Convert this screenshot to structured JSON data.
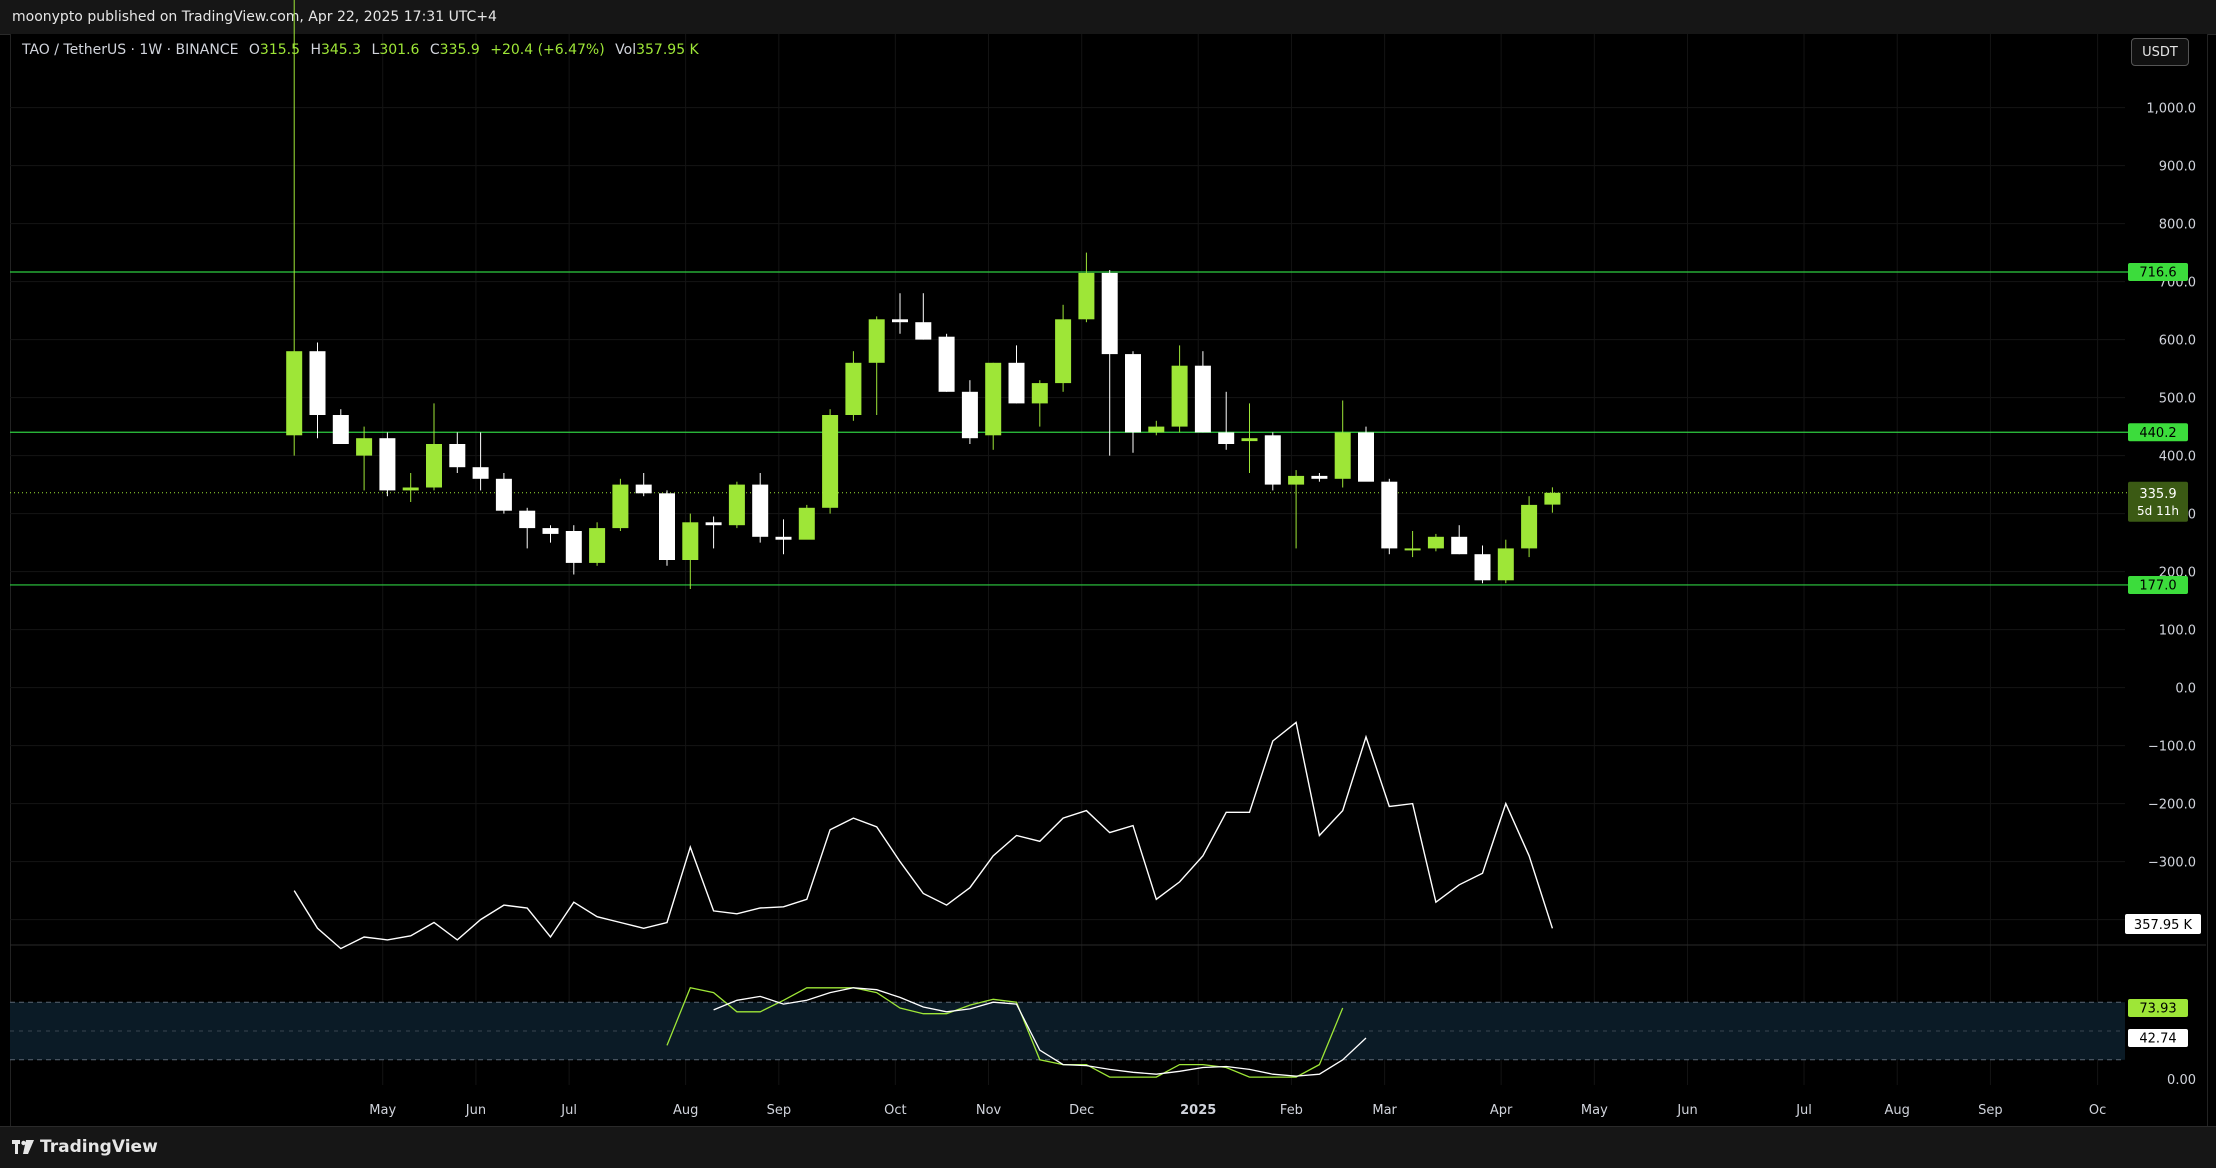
{
  "header": {
    "publish_text": "moonypto published on TradingView.com, Apr 22, 2025 17:31 UTC+4"
  },
  "legend": {
    "symbol": "TAO / TetherUS · 1W · BINANCE",
    "open_label": "O",
    "open": "315.5",
    "high_label": "H",
    "high": "345.3",
    "low_label": "L",
    "low": "301.6",
    "close_label": "C",
    "close": "335.9",
    "change": "+20.4 (+6.47%)",
    "vol_label": "Vol",
    "vol": "357.95 K"
  },
  "currency_button": "USDT",
  "footer": {
    "brand": "TradingView"
  },
  "colors": {
    "up": "#9ee637",
    "down": "#ffffff",
    "level": "#2ecc40",
    "badge": "#3cdc3c",
    "background": "#000000"
  },
  "chart_data": [
    {
      "type": "candlestick",
      "price_axis": {
        "ticks": [
          1000,
          900,
          800,
          700,
          600,
          500,
          400,
          300,
          200,
          100,
          0
        ],
        "tick_labels": [
          "1,000.0",
          "900.0",
          "800.0",
          "700.0",
          "600.0",
          "500.0",
          "400.0",
          "300.0",
          "200.0",
          "100.0",
          "0.0"
        ]
      },
      "time_axis": {
        "labels": [
          "May",
          "Jun",
          "Jul",
          "Aug",
          "Sep",
          "Oct",
          "Nov",
          "Dec",
          "2025",
          "Feb",
          "Mar",
          "Apr",
          "May",
          "Jun",
          "Jul",
          "Aug",
          "Sep",
          "Oc"
        ],
        "label_weeks": [
          3.8,
          7.8,
          11.8,
          16.8,
          20.8,
          25.8,
          29.8,
          33.8,
          38.8,
          42.8,
          46.8,
          51.8,
          55.8,
          59.8,
          64.8,
          68.8,
          72.8,
          77.4
        ]
      },
      "horizontal_levels": [
        {
          "price": 716.6,
          "label": "716.6"
        },
        {
          "price": 440.2,
          "label": "440.2"
        },
        {
          "price": 177.0,
          "label": "177.0"
        }
      ],
      "last_price": {
        "price": 335.9,
        "label": "335.9",
        "countdown": "5d 11h"
      },
      "candles": [
        {
          "o": 435,
          "h": 1200,
          "l": 400,
          "c": 580
        },
        {
          "o": 580,
          "h": 595,
          "l": 430,
          "c": 470
        },
        {
          "o": 470,
          "h": 480,
          "l": 420,
          "c": 420
        },
        {
          "o": 400,
          "h": 450,
          "l": 340,
          "c": 430
        },
        {
          "o": 430,
          "h": 440,
          "l": 330,
          "c": 340
        },
        {
          "o": 340,
          "h": 370,
          "l": 320,
          "c": 345
        },
        {
          "o": 345,
          "h": 490,
          "l": 340,
          "c": 420
        },
        {
          "o": 420,
          "h": 440,
          "l": 370,
          "c": 380
        },
        {
          "o": 380,
          "h": 440,
          "l": 340,
          "c": 360
        },
        {
          "o": 360,
          "h": 370,
          "l": 300,
          "c": 305
        },
        {
          "o": 305,
          "h": 310,
          "l": 240,
          "c": 275
        },
        {
          "o": 275,
          "h": 280,
          "l": 250,
          "c": 265
        },
        {
          "o": 270,
          "h": 280,
          "l": 195,
          "c": 215
        },
        {
          "o": 215,
          "h": 285,
          "l": 210,
          "c": 275
        },
        {
          "o": 275,
          "h": 360,
          "l": 270,
          "c": 350
        },
        {
          "o": 350,
          "h": 370,
          "l": 330,
          "c": 335
        },
        {
          "o": 335,
          "h": 340,
          "l": 210,
          "c": 220
        },
        {
          "o": 220,
          "h": 300,
          "l": 170,
          "c": 285
        },
        {
          "o": 285,
          "h": 295,
          "l": 240,
          "c": 280
        },
        {
          "o": 280,
          "h": 355,
          "l": 275,
          "c": 350
        },
        {
          "o": 350,
          "h": 370,
          "l": 250,
          "c": 260
        },
        {
          "o": 260,
          "h": 290,
          "l": 230,
          "c": 255
        },
        {
          "o": 255,
          "h": 315,
          "l": 265,
          "c": 310
        },
        {
          "o": 310,
          "h": 480,
          "l": 300,
          "c": 470
        },
        {
          "o": 470,
          "h": 580,
          "l": 460,
          "c": 560
        },
        {
          "o": 560,
          "h": 640,
          "l": 470,
          "c": 635
        },
        {
          "o": 635,
          "h": 680,
          "l": 610,
          "c": 630
        },
        {
          "o": 630,
          "h": 680,
          "l": 600,
          "c": 600
        },
        {
          "o": 605,
          "h": 610,
          "l": 510,
          "c": 510
        },
        {
          "o": 510,
          "h": 530,
          "l": 420,
          "c": 430
        },
        {
          "o": 435,
          "h": 560,
          "l": 410,
          "c": 560
        },
        {
          "o": 560,
          "h": 590,
          "l": 490,
          "c": 490
        },
        {
          "o": 490,
          "h": 530,
          "l": 450,
          "c": 525
        },
        {
          "o": 525,
          "h": 660,
          "l": 510,
          "c": 635
        },
        {
          "o": 635,
          "h": 750,
          "l": 630,
          "c": 715
        },
        {
          "o": 715,
          "h": 720,
          "l": 400,
          "c": 575
        },
        {
          "o": 575,
          "h": 580,
          "l": 405,
          "c": 440
        },
        {
          "o": 440,
          "h": 460,
          "l": 435,
          "c": 450
        },
        {
          "o": 450,
          "h": 590,
          "l": 440,
          "c": 555
        },
        {
          "o": 555,
          "h": 580,
          "l": 440,
          "c": 440
        },
        {
          "o": 440,
          "h": 510,
          "l": 410,
          "c": 420
        },
        {
          "o": 425,
          "h": 490,
          "l": 370,
          "c": 430
        },
        {
          "o": 435,
          "h": 440,
          "l": 340,
          "c": 350
        },
        {
          "o": 350,
          "h": 375,
          "l": 240,
          "c": 365
        },
        {
          "o": 365,
          "h": 370,
          "l": 355,
          "c": 360
        },
        {
          "o": 360,
          "h": 495,
          "l": 345,
          "c": 440
        },
        {
          "o": 440,
          "h": 450,
          "l": 360,
          "c": 355
        },
        {
          "o": 355,
          "h": 360,
          "l": 230,
          "c": 240
        },
        {
          "o": 240,
          "h": 270,
          "l": 225,
          "c": 240
        },
        {
          "o": 240,
          "h": 265,
          "l": 235,
          "c": 260
        },
        {
          "o": 260,
          "h": 280,
          "l": 230,
          "c": 230
        },
        {
          "o": 230,
          "h": 245,
          "l": 180,
          "c": 185
        },
        {
          "o": 185,
          "h": 255,
          "l": 180,
          "c": 240
        },
        {
          "o": 240,
          "h": 330,
          "l": 225,
          "c": 315
        },
        {
          "o": 315.5,
          "h": 345.3,
          "l": 301.6,
          "c": 335.9
        }
      ]
    },
    {
      "type": "line",
      "name": "",
      "last_label": "357.95 K",
      "values": [
        -350,
        -415,
        -450,
        -430,
        -435,
        -428,
        -405,
        -435,
        -400,
        -375,
        -380,
        -430,
        -370,
        -395,
        -405,
        -415,
        -405,
        -275,
        -385,
        -390,
        -380,
        -378,
        -365,
        -245,
        -225,
        -240,
        -300,
        -355,
        -375,
        -345,
        -290,
        -255,
        -265,
        -225,
        -212,
        -250,
        -238,
        -365,
        -335,
        -290,
        -215,
        -215,
        -92,
        -60,
        -255,
        -212,
        -85,
        -205,
        -200,
        -370,
        -340,
        -320,
        -200,
        -290,
        -415
      ]
    },
    {
      "type": "line",
      "name": "",
      "yrange": [
        0,
        100
      ],
      "band": [
        20,
        80
      ],
      "midline": 50,
      "labels": {
        "k": "73.93",
        "d": "42.74",
        "zero": "0.00"
      },
      "k_start": 16,
      "k": [
        35,
        95,
        90,
        70,
        70,
        82,
        95,
        95,
        95,
        90,
        74,
        68,
        68,
        77,
        83,
        80,
        20,
        15,
        15,
        2,
        2,
        2,
        15,
        15,
        12,
        2,
        2,
        2,
        15,
        73.93
      ],
      "d_start": 18,
      "d": [
        72,
        82,
        86,
        78,
        82,
        90,
        95,
        93,
        85,
        75,
        70,
        73,
        80,
        78,
        30,
        15,
        14,
        10,
        7,
        5,
        8,
        12,
        13,
        10,
        5,
        3,
        5,
        20,
        42.74
      ]
    }
  ]
}
